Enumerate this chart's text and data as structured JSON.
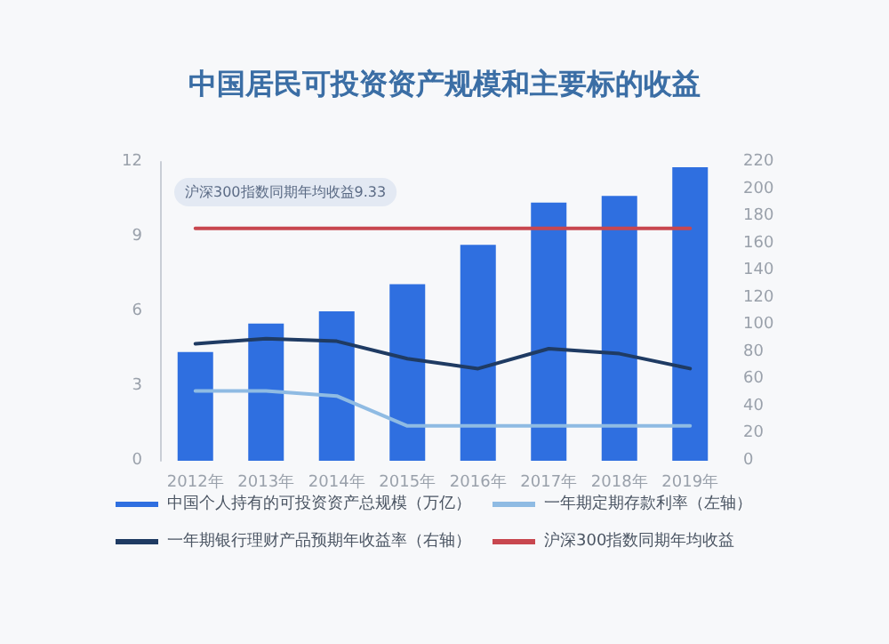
{
  "chart_data": {
    "type": "bar",
    "title": "中国居民可投资资产规模和主要标的收益",
    "categories": [
      "2012年",
      "2013年",
      "2014年",
      "2015年",
      "2016年",
      "2017年",
      "2018年",
      "2019年"
    ],
    "series": [
      {
        "name": "中国个人持有的可投资资产总规模（万亿）",
        "axis": "y2",
        "color": "#2f6fe0",
        "values": [
          80,
          101,
          110,
          130,
          159,
          190,
          195,
          216
        ]
      },
      {
        "name": "一年期定期存款利率（左轴）",
        "type": "line",
        "color": "#8fbbe3",
        "values": [
          2.8,
          2.8,
          2.6,
          1.4,
          1.4,
          1.4,
          1.4,
          1.4
        ]
      },
      {
        "name": "一年期银行理财产品预期年收益率（右轴）",
        "type": "line",
        "color": "#1f3b63",
        "values": [
          4.7,
          4.9,
          4.8,
          4.1,
          3.7,
          4.5,
          4.3,
          3.7
        ]
      },
      {
        "name": "沪深300指数同期年均收益",
        "type": "line",
        "color": "#c8474f",
        "values": [
          9.33,
          9.33,
          9.33,
          9.33,
          9.33,
          9.33,
          9.33,
          9.33
        ]
      }
    ],
    "ylim": [
      0,
      12
    ],
    "yticks": [
      0,
      3,
      6,
      9,
      12
    ],
    "y2lim": [
      0,
      220
    ],
    "y2ticks": [
      0,
      20,
      40,
      60,
      80,
      100,
      120,
      140,
      160,
      180,
      200,
      220
    ],
    "annotations": [
      "沪深300指数同期年均收益9.33"
    ],
    "grid": false,
    "legend": "bottom",
    "marker": "none",
    "line_style": "solid"
  }
}
